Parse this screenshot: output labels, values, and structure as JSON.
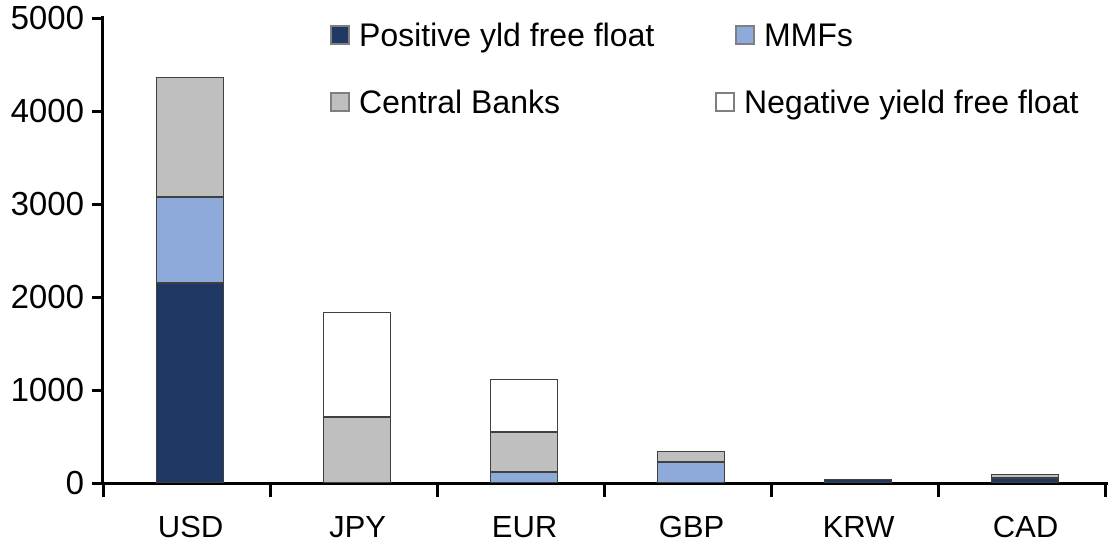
{
  "chart_data": {
    "type": "bar",
    "stacked": true,
    "title": "",
    "xlabel": "",
    "ylabel": "",
    "categories": [
      "USD",
      "JPY",
      "EUR",
      "GBP",
      "KRW",
      "CAD"
    ],
    "series": [
      {
        "name": "Positive yld free float",
        "color": "#1F3864",
        "values": [
          2150,
          0,
          0,
          0,
          45,
          55
        ]
      },
      {
        "name": "MMFs",
        "color": "#8EAADB",
        "values": [
          925,
          0,
          115,
          225,
          0,
          0
        ]
      },
      {
        "name": "Central Banks",
        "color": "#BFBFBF",
        "values": [
          1290,
          710,
          435,
          120,
          0,
          40
        ]
      },
      {
        "name": "Negative yield free float",
        "color": "#FFFFFF",
        "values": [
          0,
          1130,
          570,
          0,
          0,
          0
        ]
      }
    ],
    "totals": [
      4365,
      1840,
      1120,
      345,
      45,
      95
    ],
    "ylim": [
      0,
      5000
    ],
    "yticks": [
      0,
      1000,
      2000,
      3000,
      4000,
      5000
    ],
    "grid": false,
    "legend_position": "top",
    "axis_color": "#000000",
    "segment_border_color": "#404040"
  }
}
